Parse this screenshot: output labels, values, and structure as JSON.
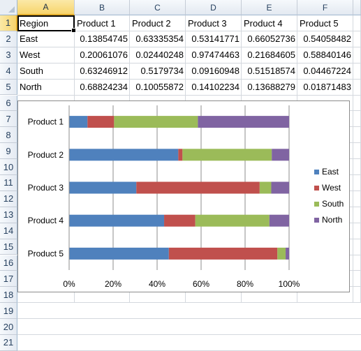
{
  "spreadsheet": {
    "columns": [
      "A",
      "B",
      "C",
      "D",
      "E",
      "F"
    ],
    "rows": [
      "1",
      "2",
      "3",
      "4",
      "5",
      "6",
      "7",
      "8",
      "9",
      "10",
      "11",
      "12",
      "13",
      "14",
      "15",
      "16",
      "17",
      "18",
      "19",
      "20",
      "21"
    ],
    "header_row": [
      "Region",
      "Product 1",
      "Product 2",
      "Product 3",
      "Product 4",
      "Product 5"
    ],
    "data_rows": [
      [
        "East",
        "0.13854745",
        "0.63335354",
        "0.53141771",
        "0.66052736",
        "0.54058482"
      ],
      [
        "West",
        "0.20061076",
        "0.02440248",
        "0.97474463",
        "0.21684605",
        "0.58840146"
      ],
      [
        "South",
        "0.63246912",
        "0.5179734",
        "0.09160948",
        "0.51518574",
        "0.04467224"
      ],
      [
        "North",
        "0.68824234",
        "0.10055872",
        "0.14102234",
        "0.13688279",
        "0.01871483"
      ]
    ]
  },
  "chart_data": {
    "type": "bar",
    "orientation": "horizontal",
    "stacking": "percent",
    "categories": [
      "Product 1",
      "Product 2",
      "Product 3",
      "Product 4",
      "Product 5"
    ],
    "series": [
      {
        "name": "East",
        "color": "#4f81bd",
        "values": [
          0.13854745,
          0.63335354,
          0.53141771,
          0.66052736,
          0.54058482
        ]
      },
      {
        "name": "West",
        "color": "#c0504d",
        "values": [
          0.20061076,
          0.02440248,
          0.97474463,
          0.21684605,
          0.58840146
        ]
      },
      {
        "name": "South",
        "color": "#9bbb59",
        "values": [
          0.63246912,
          0.5179734,
          0.09160948,
          0.51518574,
          0.04467224
        ]
      },
      {
        "name": "North",
        "color": "#8064a2",
        "values": [
          0.68824234,
          0.10055872,
          0.14102234,
          0.13688279,
          0.01871483
        ]
      }
    ],
    "x_ticks": [
      "0%",
      "20%",
      "40%",
      "60%",
      "80%",
      "100%"
    ],
    "xlim": [
      0,
      1
    ],
    "grid": true,
    "legend": "right",
    "title": "",
    "xlabel": "",
    "ylabel": ""
  }
}
